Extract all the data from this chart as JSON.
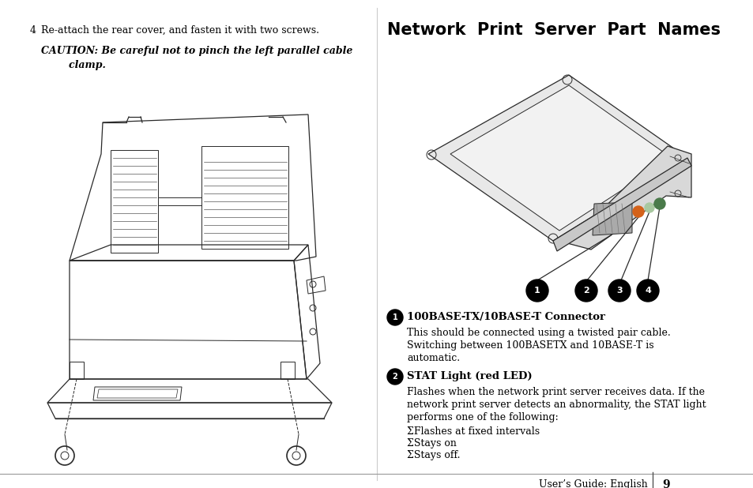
{
  "background_color": "#ffffff",
  "page_width": 9.54,
  "page_height": 6.18,
  "left_column": {
    "step_number": "4",
    "step_text": "Re-attach the rear cover, and fasten it with two screws.",
    "caution_line1": "CAUTION: Be careful not to pinch the left parallel cable",
    "caution_line2": "        clamp."
  },
  "right_column": {
    "title": "Network  Print  Server  Part  Names",
    "item1_heading": "100BASE-TX/10BASE-T Connector",
    "item1_body1": "This should be connected using a twisted pair cable.",
    "item1_body2": "Switching between 100BASETX and 10BASE-T is",
    "item1_body3": "automatic.",
    "item2_heading": "STAT Light (red LED)",
    "item2_body1": "Flashes when the network print server receives data. If the",
    "item2_body2": "network print server detects an abnormality, the STAT light",
    "item2_body3": "performs one of the following:",
    "item2_bullet1": "ΣFlashes at fixed intervals",
    "item2_bullet2": "ΣStays on",
    "item2_bullet3": "ΣStays off."
  },
  "footer_text": "User’s Guide: English",
  "footer_page": "9",
  "led_orange": "#d4621a",
  "led_lightgreen": "#a8c8a0",
  "led_darkgreen": "#4a7a4a"
}
